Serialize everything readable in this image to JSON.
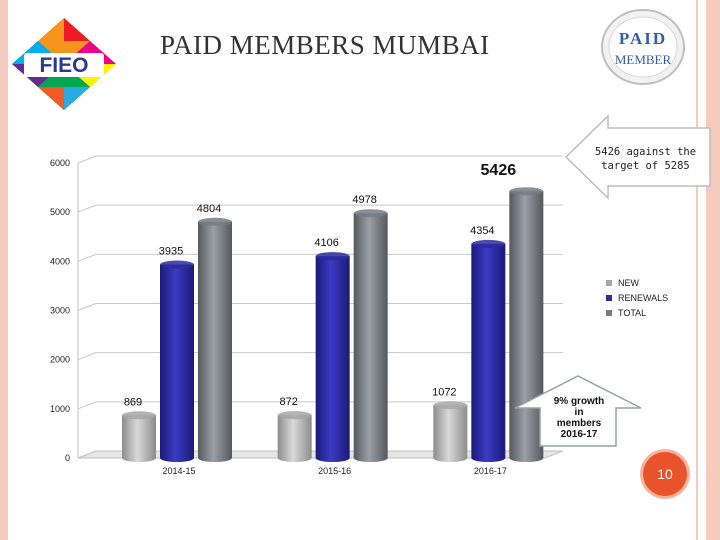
{
  "slide": {
    "title": "PAID MEMBERS MUMBAI",
    "logo_text": "FIEO",
    "badge_top": "PAID",
    "badge_bottom": "MEMBER",
    "callout": "5426 against the target of 5285",
    "growth_note": "9% growth in members 2016-17",
    "page_number": "10"
  },
  "chart_data": {
    "type": "bar",
    "categories": [
      "2014-15",
      "2015-16",
      "2016-17"
    ],
    "series": [
      {
        "name": "NEW",
        "color": "#a6a6a6",
        "values": [
          869,
          872,
          1072
        ]
      },
      {
        "name": "RENEWALS",
        "color": "#2b2b9e",
        "values": [
          3935,
          4106,
          4354
        ]
      },
      {
        "name": "TOTAL",
        "color": "#757b82",
        "values": [
          4804,
          4978,
          5426
        ]
      }
    ],
    "ylim": [
      0,
      6000
    ],
    "yticks": [
      "0",
      "1000",
      "2000",
      "3000",
      "4000",
      "5000",
      "6000"
    ],
    "data_labels": [
      "869",
      "3935",
      "4804",
      "872",
      "4106",
      "4978",
      "1072",
      "4354",
      "5426"
    ],
    "legend_position": "right",
    "grid": true
  }
}
